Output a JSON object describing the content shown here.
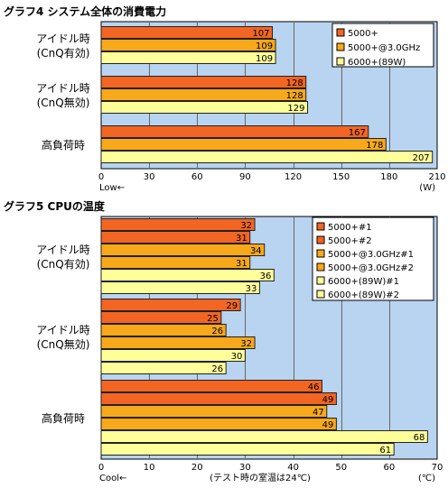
{
  "chart_data": [
    {
      "type": "bar",
      "orientation": "horizontal",
      "title": "グラフ4  システム全体の消費電力",
      "xlim": [
        0,
        210
      ],
      "ticks": [
        0,
        30,
        60,
        90,
        120,
        150,
        180,
        210
      ],
      "unit_label": "(W)",
      "direction_label": "Low←",
      "grid": "vertical",
      "legend_position": "top-right",
      "groups": [
        {
          "label_line1": "アイドル時",
          "label_line2": "(CnQ有効)"
        },
        {
          "label_line1": "アイドル時",
          "label_line2": "(CnQ無効)"
        },
        {
          "label_line1": "高負荷時",
          "label_line2": ""
        }
      ],
      "series": [
        {
          "name": "5000+",
          "color": "#f26522",
          "values": [
            107,
            128,
            167
          ]
        },
        {
          "name": "5000+@3.0GHz",
          "color": "#f7a81b",
          "values": [
            109,
            128,
            178
          ]
        },
        {
          "name": "6000+(89W)",
          "color": "#ffff99",
          "values": [
            109,
            129,
            207
          ]
        }
      ]
    },
    {
      "type": "bar",
      "orientation": "horizontal",
      "title": "グラフ5  CPUの温度",
      "xlim": [
        0,
        70
      ],
      "ticks": [
        0,
        10,
        20,
        30,
        40,
        50,
        60,
        70
      ],
      "unit_label": "(℃)",
      "direction_label": "Cool←",
      "note": "(テスト時の室温は24℃)",
      "grid": "vertical",
      "legend_position": "top-right",
      "groups": [
        {
          "label_line1": "アイドル時",
          "label_line2": "(CnQ有効)"
        },
        {
          "label_line1": "アイドル時",
          "label_line2": "(CnQ無効)"
        },
        {
          "label_line1": "高負荷時",
          "label_line2": ""
        }
      ],
      "series": [
        {
          "name": "5000+#1",
          "color": "#f26522",
          "values": [
            32,
            29,
            46
          ]
        },
        {
          "name": "5000+#2",
          "color": "#f26522",
          "values": [
            31,
            25,
            49
          ]
        },
        {
          "name": "5000+@3.0GHz#1",
          "color": "#f7a81b",
          "values": [
            34,
            26,
            47
          ]
        },
        {
          "name": "5000+@3.0GHz#2",
          "color": "#f7a81b",
          "values": [
            31,
            32,
            49
          ]
        },
        {
          "name": "6000+(89W)#1",
          "color": "#ffff99",
          "values": [
            36,
            30,
            68
          ]
        },
        {
          "name": "6000+(89W)#2",
          "color": "#ffff99",
          "values": [
            33,
            26,
            61
          ]
        }
      ]
    }
  ],
  "colors": {
    "plot_background": "#b8d4f0",
    "grid": "#666666",
    "bar_outline": "#222222"
  }
}
